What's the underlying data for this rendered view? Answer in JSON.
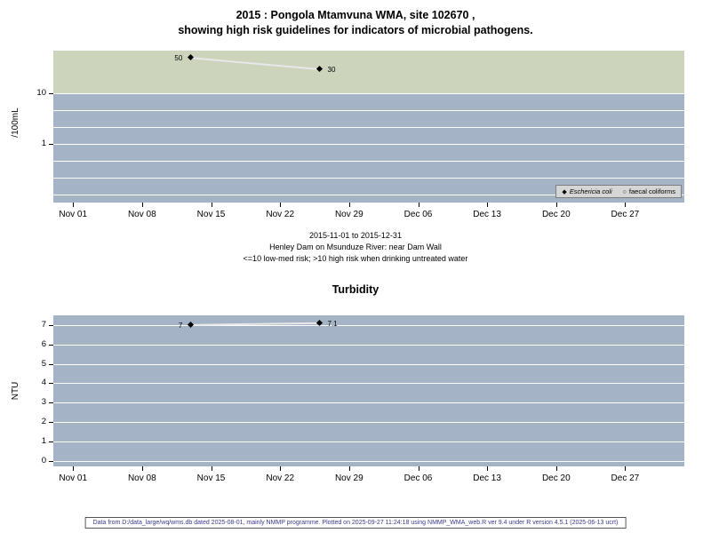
{
  "page": {
    "title_line1": "2015 : Pongola Mtamvuna WMA, site 102670 ,",
    "title_line2": "showing high risk guidelines for indicators of microbial pathogens.",
    "footer": "Data from D:/data_large/wq/wms.db dated 2025-08-01, mainly NMMP programme. Plotted on 2025-09-27 11:24:18 using NMMP_WMA_web.R ver 9.4 under R version 4.5.1 (2025-06-13 ucrt)"
  },
  "colors": {
    "plot_bg": "#a4b3c6",
    "risk_band": "#cdd4bc",
    "gridline": "#ffffff",
    "marker": "#000000",
    "trend_line": "#e8e8e8",
    "legend_bg": "#d6d6d6",
    "footer_text": "#3a3a8c"
  },
  "chart_data": [
    {
      "type": "scatter",
      "title": "",
      "ylabel": "/100mL",
      "yscale": "log",
      "ylim": [
        0.07,
        70
      ],
      "ytick_values": [
        1,
        10
      ],
      "threshold": 10,
      "x_domain_days": [
        -2,
        62
      ],
      "x_ticks": [
        {
          "day": 0,
          "label": "Nov 01"
        },
        {
          "day": 7,
          "label": "Nov 08"
        },
        {
          "day": 14,
          "label": "Nov 15"
        },
        {
          "day": 21,
          "label": "Nov 22"
        },
        {
          "day": 28,
          "label": "Nov 29"
        },
        {
          "day": 35,
          "label": "Dec 06"
        },
        {
          "day": 42,
          "label": "Dec 13"
        },
        {
          "day": 49,
          "label": "Dec 20"
        },
        {
          "day": 56,
          "label": "Dec 27"
        }
      ],
      "series": [
        {
          "name": "Eschericia coli",
          "marker": "filled-diamond",
          "points": [
            {
              "day": 12,
              "value": 50,
              "label": "50",
              "label_side": "left"
            },
            {
              "day": 25,
              "value": 30,
              "label": "30",
              "label_side": "right"
            }
          ]
        },
        {
          "name": "faecal coliforms",
          "marker": "open-circle",
          "points": []
        }
      ],
      "legend": [
        {
          "marker": "filled-diamond",
          "label": "Eschericia coli",
          "italic": true
        },
        {
          "marker": "open-circle",
          "label": "faecal coliforms",
          "italic": false
        }
      ],
      "captions": [
        "2015-11-01 to 2015-12-31",
        "Henley Dam on Msunduze River: near Dam Wall",
        "<=10 low-med risk; >10 high risk when drinking untreated water"
      ]
    },
    {
      "type": "scatter",
      "title": "Turbidity",
      "ylabel": "NTU",
      "yscale": "linear",
      "ylim": [
        -0.3,
        7.5
      ],
      "ytick_values": [
        0,
        1,
        2,
        3,
        4,
        5,
        6,
        7
      ],
      "x_domain_days": [
        -2,
        62
      ],
      "x_ticks": [
        {
          "day": 0,
          "label": "Nov 01"
        },
        {
          "day": 7,
          "label": "Nov 08"
        },
        {
          "day": 14,
          "label": "Nov 15"
        },
        {
          "day": 21,
          "label": "Nov 22"
        },
        {
          "day": 28,
          "label": "Nov 29"
        },
        {
          "day": 35,
          "label": "Dec 06"
        },
        {
          "day": 42,
          "label": "Dec 13"
        },
        {
          "day": 49,
          "label": "Dec 20"
        },
        {
          "day": 56,
          "label": "Dec 27"
        }
      ],
      "series": [
        {
          "name": "turbidity",
          "marker": "filled-diamond",
          "points": [
            {
              "day": 12,
              "value": 7,
              "label": "7",
              "label_side": "left"
            },
            {
              "day": 25,
              "value": 7.1,
              "label": "7.1",
              "label_side": "right"
            }
          ]
        }
      ]
    }
  ]
}
